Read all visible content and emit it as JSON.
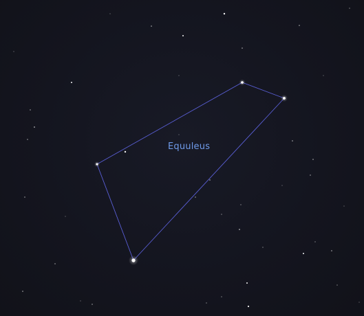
{
  "constellation": {
    "name": "Equuleus",
    "label_color": "#6f9bea",
    "line_color": "#5a5fd6",
    "star_color": "#ffffff"
  }
}
